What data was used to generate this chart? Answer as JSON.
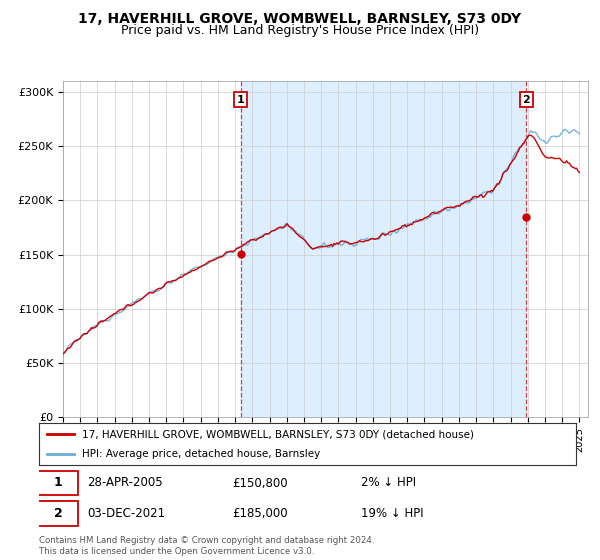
{
  "title": "17, HAVERHILL GROVE, WOMBWELL, BARNSLEY, S73 0DY",
  "subtitle": "Price paid vs. HM Land Registry's House Price Index (HPI)",
  "ylabel_ticks": [
    "£0",
    "£50K",
    "£100K",
    "£150K",
    "£200K",
    "£250K",
    "£300K"
  ],
  "ytick_values": [
    0,
    50000,
    100000,
    150000,
    200000,
    250000,
    300000
  ],
  "ylim": [
    0,
    310000
  ],
  "xlim_start": 1995.0,
  "xlim_end": 2025.5,
  "sale1_x": 2005.32,
  "sale1_y": 150800,
  "sale2_x": 2021.92,
  "sale2_y": 185000,
  "hpi_color": "#6baed6",
  "price_color": "#cc0000",
  "shade_color": "#ddeeff",
  "legend_label1": "17, HAVERHILL GROVE, WOMBWELL, BARNSLEY, S73 0DY (detached house)",
  "legend_label2": "HPI: Average price, detached house, Barnsley",
  "annotation1_date": "28-APR-2005",
  "annotation1_price": "£150,800",
  "annotation1_hpi": "2% ↓ HPI",
  "annotation2_date": "03-DEC-2021",
  "annotation2_price": "£185,000",
  "annotation2_hpi": "19% ↓ HPI",
  "footer": "Contains HM Land Registry data © Crown copyright and database right 2024.\nThis data is licensed under the Open Government Licence v3.0.",
  "bg_color": "#ffffff",
  "grid_color": "#cccccc",
  "title_fontsize": 10,
  "subtitle_fontsize": 9
}
